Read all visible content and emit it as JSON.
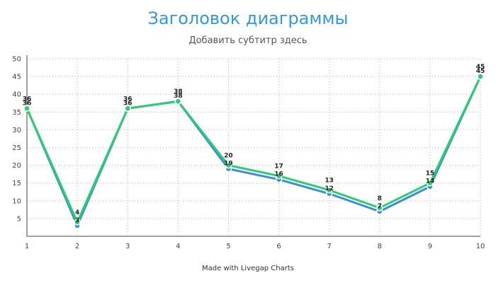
{
  "chart_data": {
    "type": "line",
    "title": "Заголовок диаграммы",
    "subtitle": "Добавить субтитр здесь",
    "x": [
      1,
      2,
      3,
      4,
      5,
      6,
      7,
      8,
      9,
      10
    ],
    "series": [
      {
        "values": [
          36,
          3,
          36,
          38,
          19,
          16,
          12,
          7,
          14,
          45
        ],
        "color": "#3a8fd8"
      },
      {
        "values": [
          36,
          4,
          36,
          38,
          20,
          17,
          13,
          8,
          15,
          45
        ],
        "color": "#2ecc71"
      }
    ],
    "ylim": [
      0,
      50
    ],
    "yticks": [
      5,
      10,
      15,
      20,
      25,
      30,
      35,
      40,
      45,
      50
    ],
    "grid": true,
    "data_labels": true
  },
  "footer": "Made with Livegap Charts"
}
